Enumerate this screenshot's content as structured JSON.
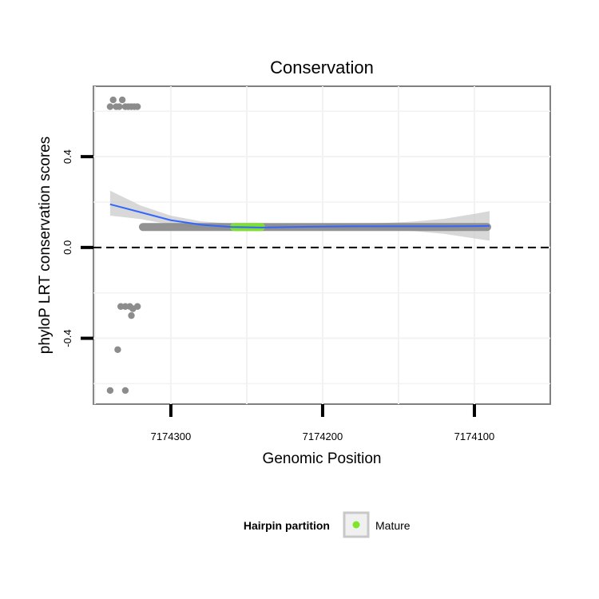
{
  "chart_data": {
    "type": "scatter",
    "title": "Conservation",
    "xlabel": "Genomic Position",
    "ylabel": "phyloP LRT conservation scores",
    "x_reversed": true,
    "xlim": [
      7174050,
      7174351
    ],
    "ylim": [
      -0.69,
      0.71
    ],
    "x_ticks": [
      7174300,
      7174200,
      7174100
    ],
    "x_tick_labels": [
      "7174300",
      "7174200",
      "7174100"
    ],
    "y_ticks": [
      0.4,
      0.0,
      -0.4
    ],
    "y_tick_labels": [
      "0.4",
      "0.0",
      "-0.4"
    ],
    "grid": true,
    "reference_line": {
      "y": 0.0,
      "style": "dashed"
    },
    "legend": {
      "title": "Hairpin partition",
      "placement": "bottom",
      "entries": [
        {
          "label": "Mature",
          "color": "#7fe52a"
        }
      ]
    },
    "series": [
      {
        "kind": "points",
        "color": "#8c8c8c",
        "points": [
          [
            7174340,
            0.62
          ],
          [
            7174338,
            0.65
          ],
          [
            7174336,
            0.62
          ],
          [
            7174334,
            0.62
          ],
          [
            7174332,
            0.65
          ],
          [
            7174330,
            0.62
          ],
          [
            7174328,
            0.62
          ],
          [
            7174326,
            0.62
          ],
          [
            7174324,
            0.62
          ],
          [
            7174322,
            0.62
          ],
          [
            7174333,
            -0.26
          ],
          [
            7174330,
            -0.26
          ],
          [
            7174327,
            -0.26
          ],
          [
            7174325,
            -0.27
          ],
          [
            7174322,
            -0.26
          ],
          [
            7174326,
            -0.3
          ],
          [
            7174335,
            -0.45
          ],
          [
            7174340,
            -0.63
          ],
          [
            7174330,
            -0.63
          ]
        ],
        "band": {
          "x_from": 7174320,
          "x_to": 7174090,
          "y": 0.09
        }
      },
      {
        "kind": "band",
        "name": "Mature",
        "color": "#7fe52a",
        "band": {
          "x_from": 7174260,
          "x_to": 7174239,
          "y": 0.09
        }
      }
    ],
    "smooth": {
      "color": "#3366ff",
      "ribbon_color": "#c8c8c8",
      "points": [
        [
          7174340,
          0.19,
          0.14,
          0.25
        ],
        [
          7174320,
          0.155,
          0.125,
          0.185
        ],
        [
          7174300,
          0.12,
          0.1,
          0.14
        ],
        [
          7174280,
          0.1,
          0.085,
          0.115
        ],
        [
          7174260,
          0.09,
          0.075,
          0.105
        ],
        [
          7174240,
          0.088,
          0.075,
          0.1
        ],
        [
          7174220,
          0.09,
          0.078,
          0.102
        ],
        [
          7174200,
          0.092,
          0.08,
          0.104
        ],
        [
          7174180,
          0.093,
          0.081,
          0.105
        ],
        [
          7174160,
          0.093,
          0.078,
          0.108
        ],
        [
          7174140,
          0.093,
          0.072,
          0.114
        ],
        [
          7174120,
          0.093,
          0.06,
          0.126
        ],
        [
          7174100,
          0.094,
          0.04,
          0.148
        ],
        [
          7174090,
          0.095,
          0.03,
          0.16
        ]
      ]
    }
  }
}
